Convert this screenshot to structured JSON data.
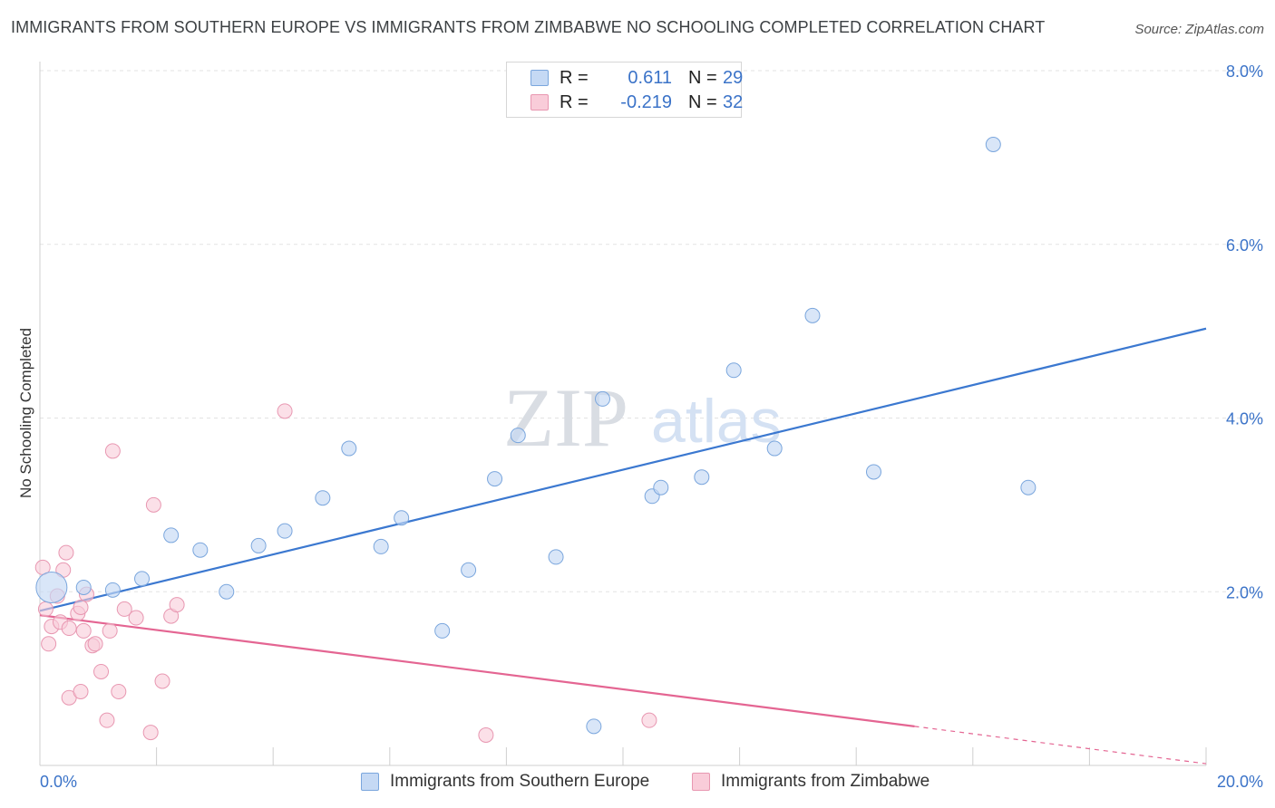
{
  "header": {
    "title": "IMMIGRANTS FROM SOUTHERN EUROPE VS IMMIGRANTS FROM ZIMBABWE NO SCHOOLING COMPLETED CORRELATION CHART",
    "source": "Source: ZipAtlas.com"
  },
  "watermark": {
    "zip": "ZIP",
    "atlas": "atlas"
  },
  "legend": {
    "rows": [
      {
        "r_label": "R =",
        "r_value": "0.611",
        "n_label": "N =",
        "n_value": "29"
      },
      {
        "r_label": "R =",
        "r_value": "-0.219",
        "n_label": "N =",
        "n_value": "32"
      }
    ]
  },
  "bottom_legend": {
    "series1": "Immigrants from Southern Europe",
    "series2": "Immigrants from Zimbabwe"
  },
  "colors": {
    "blue_fill": "#c5d9f4",
    "blue_stroke": "#7aa6dd",
    "blue_line": "#3b78d0",
    "pink_fill": "#f9ccd9",
    "pink_stroke": "#e897b1",
    "pink_line": "#e46592",
    "grid": "#e3e3e3",
    "axis_text": "#3b73c8"
  },
  "chart_data": {
    "type": "scatter",
    "title": "IMMIGRANTS FROM SOUTHERN EUROPE VS IMMIGRANTS FROM ZIMBABWE NO SCHOOLING COMPLETED CORRELATION CHART",
    "xlabel": "",
    "ylabel": "No Schooling Completed",
    "xlim": [
      0,
      20
    ],
    "ylim": [
      0,
      8
    ],
    "x_tick_labels": [
      "0.0%",
      "20.0%"
    ],
    "y_ticks": [
      2,
      4,
      6,
      8
    ],
    "y_tick_labels": [
      "2.0%",
      "4.0%",
      "6.0%",
      "8.0%"
    ],
    "grid": true,
    "series": [
      {
        "name": "Immigrants from Southern Europe",
        "r": 0.611,
        "n": 29,
        "points": [
          [
            0.2,
            2.05,
            "large"
          ],
          [
            0.75,
            2.05
          ],
          [
            1.25,
            2.02
          ],
          [
            1.75,
            2.15
          ],
          [
            2.25,
            2.65
          ],
          [
            2.75,
            2.48
          ],
          [
            3.2,
            2.0
          ],
          [
            3.75,
            2.53
          ],
          [
            4.2,
            2.7
          ],
          [
            4.85,
            3.08
          ],
          [
            5.3,
            3.65
          ],
          [
            5.85,
            2.52
          ],
          [
            6.2,
            2.85
          ],
          [
            6.9,
            1.55
          ],
          [
            7.35,
            2.25
          ],
          [
            7.8,
            3.3
          ],
          [
            8.2,
            3.8
          ],
          [
            8.85,
            2.4
          ],
          [
            9.5,
            0.45
          ],
          [
            9.65,
            4.22
          ],
          [
            10.5,
            3.1
          ],
          [
            10.65,
            3.2
          ],
          [
            11.35,
            3.32
          ],
          [
            11.9,
            4.55
          ],
          [
            12.6,
            3.65
          ],
          [
            13.25,
            5.18
          ],
          [
            14.3,
            3.38
          ],
          [
            16.35,
            7.15
          ],
          [
            16.95,
            3.2
          ]
        ],
        "trend": {
          "x0": 0,
          "y0": 1.78,
          "x1": 20,
          "y1": 5.03
        }
      },
      {
        "name": "Immigrants from Zimbabwe",
        "r": -0.219,
        "n": 32,
        "points": [
          [
            0.05,
            2.28
          ],
          [
            0.1,
            1.8
          ],
          [
            0.15,
            1.4
          ],
          [
            0.2,
            1.6
          ],
          [
            0.3,
            1.95
          ],
          [
            0.35,
            1.65
          ],
          [
            0.4,
            2.25
          ],
          [
            0.45,
            2.45
          ],
          [
            0.5,
            1.58
          ],
          [
            0.5,
            0.78
          ],
          [
            0.65,
            1.75
          ],
          [
            0.7,
            1.82
          ],
          [
            0.7,
            0.85
          ],
          [
            0.75,
            1.55
          ],
          [
            0.8,
            1.97
          ],
          [
            0.9,
            1.38
          ],
          [
            0.95,
            1.4
          ],
          [
            1.05,
            1.08
          ],
          [
            1.15,
            0.52
          ],
          [
            1.2,
            1.55
          ],
          [
            1.25,
            3.62
          ],
          [
            1.35,
            0.85
          ],
          [
            1.45,
            1.8
          ],
          [
            1.65,
            1.7
          ],
          [
            1.9,
            0.38
          ],
          [
            1.95,
            3.0
          ],
          [
            2.1,
            0.97
          ],
          [
            2.25,
            1.72
          ],
          [
            2.35,
            1.85
          ],
          [
            4.2,
            4.08
          ],
          [
            7.65,
            0.35
          ],
          [
            10.45,
            0.52
          ]
        ],
        "trend": {
          "x0": 0,
          "y0": 1.73,
          "x1": 15,
          "y1": 0.45,
          "dash_x1": 20,
          "dash_y1": 0.02
        }
      }
    ]
  }
}
